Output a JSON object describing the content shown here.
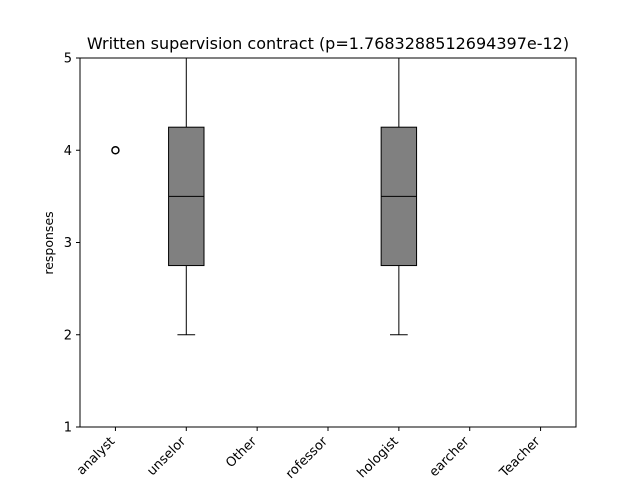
{
  "chart_data": {
    "type": "box",
    "title": "Written supervision contract (p=1.7683288512694397e-12)",
    "xlabel": "",
    "ylabel": "responses",
    "ylim": [
      1,
      5
    ],
    "yticks": [
      1,
      2,
      3,
      4,
      5
    ],
    "categories": [
      "analyst",
      "unselor",
      "Other",
      "rofessor",
      "hologist",
      "earcher",
      "Teacher"
    ],
    "boxes": [
      {
        "whisker_low": 5,
        "q1": 5,
        "median": 5,
        "q3": 5,
        "whisker_high": 5,
        "outliers": [
          4
        ]
      },
      {
        "whisker_low": 2,
        "q1": 2.75,
        "median": 3.5,
        "q3": 4.25,
        "whisker_high": 5,
        "outliers": []
      },
      {
        "whisker_low": 5,
        "q1": 5,
        "median": 5,
        "q3": 5,
        "whisker_high": 5,
        "outliers": []
      },
      {
        "whisker_low": 5,
        "q1": 5,
        "median": 5,
        "q3": 5,
        "whisker_high": 5,
        "outliers": []
      },
      {
        "whisker_low": 2,
        "q1": 2.75,
        "median": 3.5,
        "q3": 4.25,
        "whisker_high": 5,
        "outliers": []
      },
      {
        "whisker_low": 5,
        "q1": 5,
        "median": 5,
        "q3": 5,
        "whisker_high": 5,
        "outliers": []
      },
      {
        "whisker_low": 5,
        "q1": 5,
        "median": 5,
        "q3": 5,
        "whisker_high": 5,
        "outliers": []
      }
    ],
    "box_color": "#808080",
    "line_color": "#000000",
    "grid": false
  }
}
